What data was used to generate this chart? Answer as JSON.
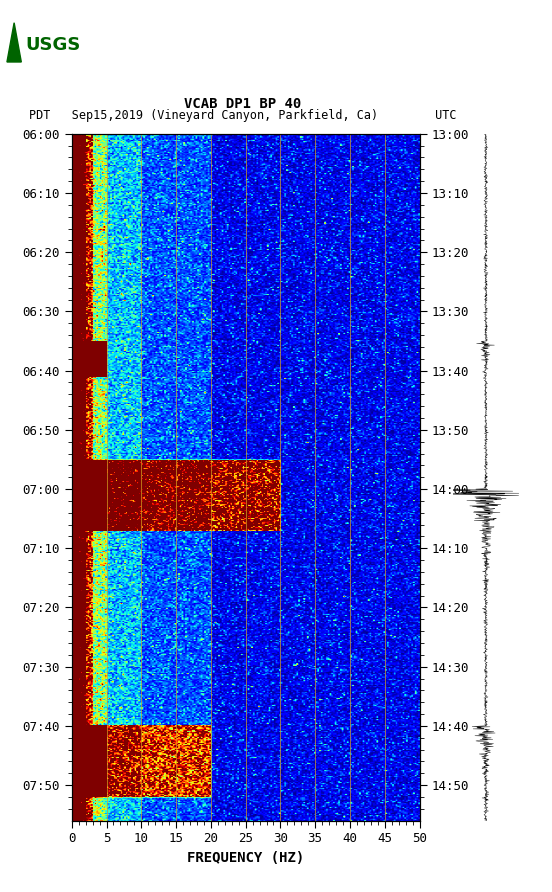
{
  "title_line1": "VCAB DP1 BP 40",
  "title_line2": "PDT   Sep15,2019 (Vineyard Canyon, Parkfield, Ca)        UTC",
  "xlabel": "FREQUENCY (HZ)",
  "freq_min": 0,
  "freq_max": 50,
  "freq_ticks": [
    0,
    5,
    10,
    15,
    20,
    25,
    30,
    35,
    40,
    45,
    50
  ],
  "pdt_ticks": [
    "06:00",
    "06:10",
    "06:20",
    "06:30",
    "06:40",
    "06:50",
    "07:00",
    "07:10",
    "07:20",
    "07:30",
    "07:40",
    "07:50"
  ],
  "utc_ticks": [
    "13:00",
    "13:10",
    "13:20",
    "13:30",
    "13:40",
    "13:50",
    "14:00",
    "14:10",
    "14:20",
    "14:30",
    "14:40",
    "14:50"
  ],
  "bg_color": "#ffffff",
  "vertical_lines_freq": [
    5,
    10,
    15,
    20,
    25,
    30,
    35,
    40,
    45
  ],
  "figsize": [
    5.52,
    8.92
  ],
  "dpi": 100,
  "usgs_logo_color": "#006400",
  "total_minutes": 116
}
